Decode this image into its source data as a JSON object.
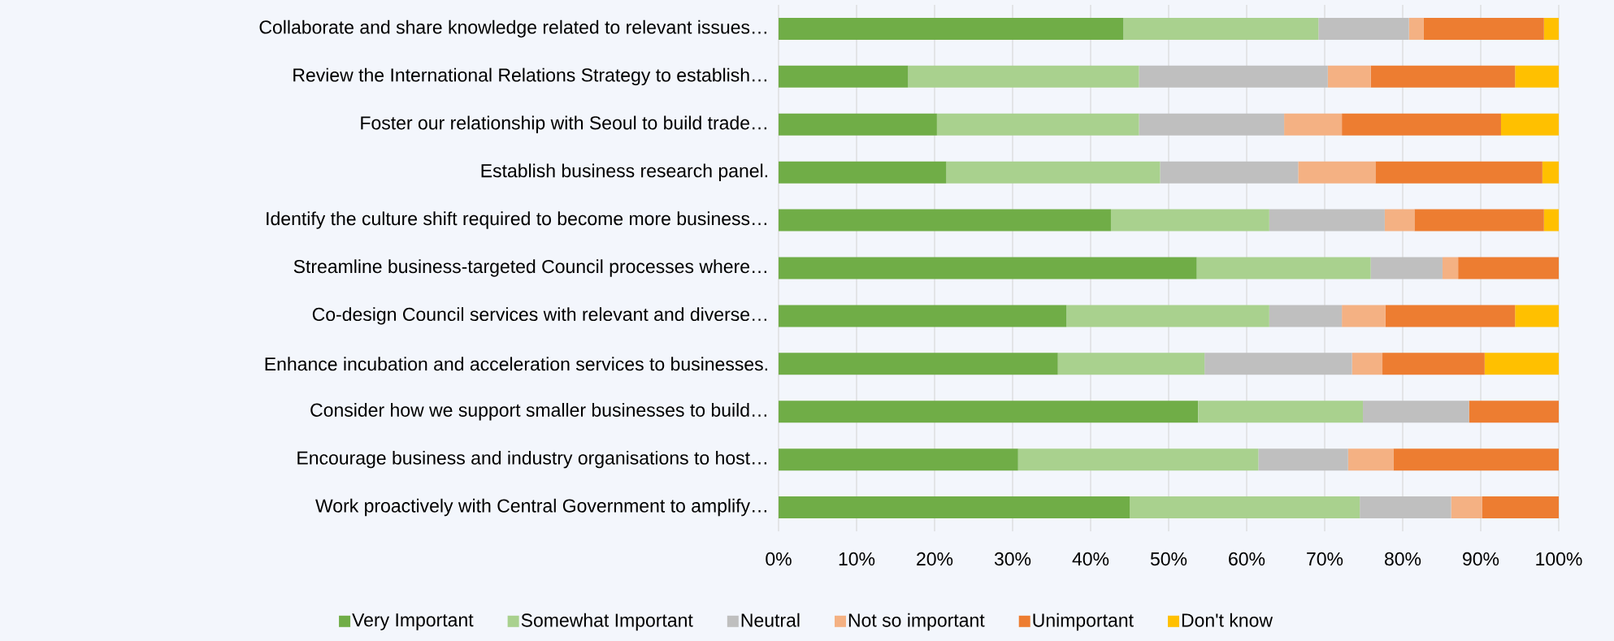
{
  "chart_data": {
    "type": "bar",
    "orientation": "horizontal",
    "stacked": true,
    "categories": [
      "Collaborate and share knowledge related to relevant issues…",
      "Review the International Relations Strategy to establish…",
      "Foster our relationship with Seoul to build trade…",
      "Establish business research panel.",
      "Identify the culture shift required to become more business…",
      "Streamline business-targeted Council processes where…",
      "Co-design Council services with relevant and diverse…",
      "Enhance incubation and acceleration services to businesses.",
      "Consider how we support smaller businesses to build…",
      "Encourage business and industry organisations to host…",
      "Work proactively with Central Government to amplify…"
    ],
    "series": [
      {
        "name": "Very Important",
        "color": "#70ad47",
        "values": [
          44.2,
          16.6,
          20.3,
          21.5,
          42.6,
          53.6,
          36.9,
          35.8,
          53.8,
          30.7,
          45.0
        ]
      },
      {
        "name": "Somewhat Important",
        "color": "#a9d18e",
        "values": [
          25.0,
          29.6,
          25.9,
          27.4,
          20.3,
          22.3,
          26.0,
          18.8,
          21.1,
          30.8,
          29.5
        ]
      },
      {
        "name": "Neutral",
        "color": "#bfbfbf",
        "values": [
          11.6,
          24.2,
          18.6,
          17.7,
          14.8,
          9.2,
          9.3,
          18.9,
          13.6,
          11.5,
          11.7
        ]
      },
      {
        "name": "Not so important",
        "color": "#f4b183",
        "values": [
          1.9,
          5.5,
          7.4,
          9.9,
          3.8,
          2.0,
          5.6,
          3.9,
          0,
          5.8,
          4.0
        ]
      },
      {
        "name": "Unimportant",
        "color": "#ed7d31",
        "values": [
          15.4,
          18.5,
          20.4,
          21.4,
          16.6,
          12.9,
          16.6,
          13.1,
          11.5,
          21.2,
          9.8
        ]
      },
      {
        "name": "Don't know",
        "color": "#ffc000",
        "values": [
          1.9,
          5.6,
          7.4,
          2.1,
          1.9,
          0,
          5.6,
          9.5,
          0,
          0,
          0
        ]
      }
    ],
    "xlim": [
      0,
      100
    ],
    "xticks": [
      {
        "value": 0,
        "label": "0%"
      },
      {
        "value": 10,
        "label": "10%"
      },
      {
        "value": 20,
        "label": "20%"
      },
      {
        "value": 30,
        "label": "30%"
      },
      {
        "value": 40,
        "label": "40%"
      },
      {
        "value": 50,
        "label": "50%"
      },
      {
        "value": 60,
        "label": "60%"
      },
      {
        "value": 70,
        "label": "70%"
      },
      {
        "value": 80,
        "label": "80%"
      },
      {
        "value": 90,
        "label": "90%"
      },
      {
        "value": 100,
        "label": "100%"
      }
    ],
    "grid": "x",
    "legend": "bottom"
  }
}
